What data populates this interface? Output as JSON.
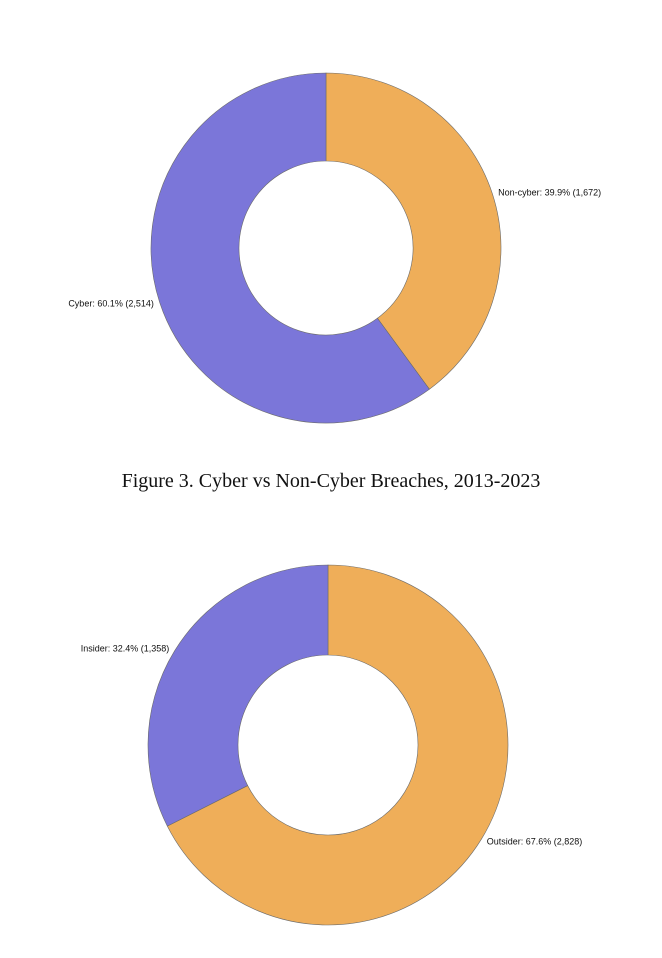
{
  "colors": {
    "accent_purple": "#7b76d9",
    "accent_orange": "#efae59",
    "edge": "#6b6b6b"
  },
  "caption": "Figure 3. Cyber vs Non-Cyber Breaches, 2013-2023",
  "chart_data": [
    {
      "type": "pie",
      "variant": "donut",
      "title": "",
      "slices": [
        {
          "label": "Non-cyber: 39.9% (1,672)",
          "category": "Non-cyber",
          "value": 1672,
          "percent": 39.9,
          "color": "#efae59"
        },
        {
          "label": "Cyber: 60.1% (2,514)",
          "category": "Cyber",
          "value": 2514,
          "percent": 60.1,
          "color": "#7b76d9"
        }
      ],
      "legend": "none"
    },
    {
      "type": "pie",
      "variant": "donut",
      "title": "",
      "slices": [
        {
          "label": "Outsider: 67.6% (2,828)",
          "category": "Outsider",
          "value": 2828,
          "percent": 67.6,
          "color": "#efae59"
        },
        {
          "label": "Insider: 32.4% (1,358)",
          "category": "Insider",
          "value": 1358,
          "percent": 32.4,
          "color": "#7b76d9"
        }
      ],
      "legend": "none"
    }
  ]
}
